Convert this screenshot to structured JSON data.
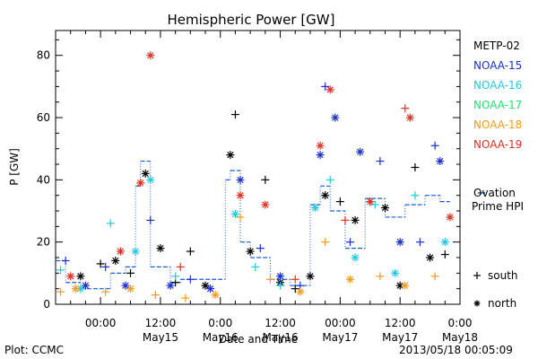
{
  "chart_data": {
    "type": "scatter",
    "title": "Hemispheric Power [GW]",
    "ylabel": "P [GW]",
    "xlabel": "Date and Time",
    "ylim": [
      0,
      88
    ],
    "yticks": [
      0,
      20,
      40,
      60,
      80
    ],
    "xlim": [
      "2013-05-14T15:00",
      "2013-05-18T00:00"
    ],
    "xticks": [
      {
        "time": "2013-05-15T00:00",
        "line1": "00:00",
        "line2": ""
      },
      {
        "time": "2013-05-15T12:00",
        "line1": "12:00",
        "line2": "May15"
      },
      {
        "time": "2013-05-16T00:00",
        "line1": "0:00",
        "line2": "May16"
      },
      {
        "time": "2013-05-16T12:00",
        "line1": "12:00",
        "line2": "May16"
      },
      {
        "time": "2013-05-17T00:00",
        "line1": "00:00",
        "line2": "May17"
      },
      {
        "time": "2013-05-17T12:00",
        "line1": "12:00",
        "line2": "May17"
      },
      {
        "time": "2013-05-18T00:00",
        "line1": "0:00",
        "line2": "May18"
      }
    ],
    "grid": false,
    "legend_position": "right",
    "marker_legend": {
      "plus": "south",
      "star": "north"
    },
    "series": [
      {
        "name": "METP-02",
        "color": "#000000",
        "points": [
          {
            "t": "2013-05-14T20:00",
            "v": 9,
            "m": "star"
          },
          {
            "t": "2013-05-15T00:00",
            "v": 13,
            "m": "plus"
          },
          {
            "t": "2013-05-15T03:00",
            "v": 14,
            "m": "star"
          },
          {
            "t": "2013-05-15T06:00",
            "v": 10,
            "m": "plus"
          },
          {
            "t": "2013-05-15T09:00",
            "v": 42,
            "m": "star"
          },
          {
            "t": "2013-05-15T12:00",
            "v": 18,
            "m": "star"
          },
          {
            "t": "2013-05-15T15:00",
            "v": 7,
            "m": "plus"
          },
          {
            "t": "2013-05-15T18:00",
            "v": 17,
            "m": "plus"
          },
          {
            "t": "2013-05-15T21:00",
            "v": 6,
            "m": "star"
          },
          {
            "t": "2013-05-16T02:00",
            "v": 48,
            "m": "star"
          },
          {
            "t": "2013-05-16T03:00",
            "v": 61,
            "m": "plus"
          },
          {
            "t": "2013-05-16T06:00",
            "v": 17,
            "m": "star"
          },
          {
            "t": "2013-05-16T09:00",
            "v": 40,
            "m": "plus"
          },
          {
            "t": "2013-05-16T12:00",
            "v": 7,
            "m": "star"
          },
          {
            "t": "2013-05-16T15:00",
            "v": 5,
            "m": "plus"
          },
          {
            "t": "2013-05-16T18:00",
            "v": 9,
            "m": "star"
          },
          {
            "t": "2013-05-16T21:00",
            "v": 35,
            "m": "star"
          },
          {
            "t": "2013-05-17T00:00",
            "v": 33,
            "m": "plus"
          },
          {
            "t": "2013-05-17T03:00",
            "v": 27,
            "m": "star"
          },
          {
            "t": "2013-05-17T06:00",
            "v": 33,
            "m": "plus"
          },
          {
            "t": "2013-05-17T09:00",
            "v": 31,
            "m": "star"
          },
          {
            "t": "2013-05-17T12:00",
            "v": 6,
            "m": "star"
          },
          {
            "t": "2013-05-17T15:00",
            "v": 44,
            "m": "plus"
          },
          {
            "t": "2013-05-17T18:00",
            "v": 15,
            "m": "star"
          },
          {
            "t": "2013-05-17T21:00",
            "v": 16,
            "m": "plus"
          }
        ]
      },
      {
        "name": "NOAA-15",
        "color": "#1a2fd0",
        "points": [
          {
            "t": "2013-05-14T17:00",
            "v": 14,
            "m": "plus"
          },
          {
            "t": "2013-05-14T21:00",
            "v": 6,
            "m": "star"
          },
          {
            "t": "2013-05-15T01:00",
            "v": 12,
            "m": "plus"
          },
          {
            "t": "2013-05-15T05:00",
            "v": 6,
            "m": "star"
          },
          {
            "t": "2013-05-15T10:00",
            "v": 27,
            "m": "plus"
          },
          {
            "t": "2013-05-15T14:00",
            "v": 6,
            "m": "star"
          },
          {
            "t": "2013-05-15T18:00",
            "v": 8,
            "m": "plus"
          },
          {
            "t": "2013-05-15T22:00",
            "v": 5,
            "m": "star"
          },
          {
            "t": "2013-05-16T04:00",
            "v": 40,
            "m": "star"
          },
          {
            "t": "2013-05-16T08:00",
            "v": 18,
            "m": "plus"
          },
          {
            "t": "2013-05-16T12:00",
            "v": 9,
            "m": "star"
          },
          {
            "t": "2013-05-16T16:00",
            "v": 6,
            "m": "plus"
          },
          {
            "t": "2013-05-16T20:00",
            "v": 48,
            "m": "star"
          },
          {
            "t": "2013-05-16T21:00",
            "v": 70,
            "m": "plus"
          },
          {
            "t": "2013-05-16T23:00",
            "v": 60,
            "m": "star"
          },
          {
            "t": "2013-05-17T02:00",
            "v": 20,
            "m": "plus"
          },
          {
            "t": "2013-05-17T04:00",
            "v": 49,
            "m": "star"
          },
          {
            "t": "2013-05-17T08:00",
            "v": 46,
            "m": "plus"
          },
          {
            "t": "2013-05-17T12:00",
            "v": 20,
            "m": "star"
          },
          {
            "t": "2013-05-17T16:00",
            "v": 20,
            "m": "plus"
          },
          {
            "t": "2013-05-17T19:00",
            "v": 51,
            "m": "plus"
          },
          {
            "t": "2013-05-17T20:00",
            "v": 46,
            "m": "star"
          }
        ]
      },
      {
        "name": "NOAA-16",
        "color": "#22c8e0",
        "points": [
          {
            "t": "2013-05-14T16:00",
            "v": 11,
            "m": "plus"
          },
          {
            "t": "2013-05-14T20:00",
            "v": 5,
            "m": "star"
          },
          {
            "t": "2013-05-15T02:00",
            "v": 26,
            "m": "plus"
          },
          {
            "t": "2013-05-15T07:00",
            "v": 17,
            "m": "star"
          },
          {
            "t": "2013-05-15T10:00",
            "v": 40,
            "m": "star"
          },
          {
            "t": "2013-05-15T15:00",
            "v": 9,
            "m": "plus"
          },
          {
            "t": "2013-05-16T03:00",
            "v": 29,
            "m": "star"
          },
          {
            "t": "2013-05-16T07:00",
            "v": 12,
            "m": "plus"
          },
          {
            "t": "2013-05-16T12:00",
            "v": 6,
            "m": "plus"
          },
          {
            "t": "2013-05-16T19:00",
            "v": 31,
            "m": "star"
          },
          {
            "t": "2013-05-16T22:00",
            "v": 40,
            "m": "plus"
          },
          {
            "t": "2013-05-17T03:00",
            "v": 15,
            "m": "star"
          },
          {
            "t": "2013-05-17T07:00",
            "v": 32,
            "m": "plus"
          },
          {
            "t": "2013-05-17T11:00",
            "v": 10,
            "m": "star"
          },
          {
            "t": "2013-05-17T15:00",
            "v": 35,
            "m": "plus"
          },
          {
            "t": "2013-05-17T21:00",
            "v": 20,
            "m": "star"
          }
        ]
      },
      {
        "name": "NOAA-17",
        "color": "#20e070",
        "points": []
      },
      {
        "name": "NOAA-18",
        "color": "#f39a20",
        "points": [
          {
            "t": "2013-05-14T16:00",
            "v": 4,
            "m": "plus"
          },
          {
            "t": "2013-05-14T19:00",
            "v": 5,
            "m": "star"
          },
          {
            "t": "2013-05-15T01:00",
            "v": 4,
            "m": "plus"
          },
          {
            "t": "2013-05-15T06:00",
            "v": 5,
            "m": "star"
          },
          {
            "t": "2013-05-15T11:00",
            "v": 3,
            "m": "plus"
          },
          {
            "t": "2013-05-15T17:00",
            "v": 2,
            "m": "plus"
          },
          {
            "t": "2013-05-15T23:00",
            "v": 3,
            "m": "star"
          },
          {
            "t": "2013-05-16T04:00",
            "v": 28,
            "m": "plus"
          },
          {
            "t": "2013-05-16T10:00",
            "v": 8,
            "m": "plus"
          },
          {
            "t": "2013-05-16T16:00",
            "v": 4,
            "m": "star"
          },
          {
            "t": "2013-05-16T21:00",
            "v": 20,
            "m": "plus"
          },
          {
            "t": "2013-05-17T02:00",
            "v": 8,
            "m": "star"
          },
          {
            "t": "2013-05-17T08:00",
            "v": 9,
            "m": "plus"
          },
          {
            "t": "2013-05-17T13:00",
            "v": 6,
            "m": "star"
          },
          {
            "t": "2013-05-17T19:00",
            "v": 9,
            "m": "plus"
          }
        ]
      },
      {
        "name": "NOAA-19",
        "color": "#e03020",
        "points": [
          {
            "t": "2013-05-14T18:00",
            "v": 9,
            "m": "star"
          },
          {
            "t": "2013-05-15T04:00",
            "v": 17,
            "m": "star"
          },
          {
            "t": "2013-05-15T08:00",
            "v": 39,
            "m": "star"
          },
          {
            "t": "2013-05-15T10:00",
            "v": 80,
            "m": "star"
          },
          {
            "t": "2013-05-15T16:00",
            "v": 12,
            "m": "plus"
          },
          {
            "t": "2013-05-16T04:00",
            "v": 35,
            "m": "star"
          },
          {
            "t": "2013-05-16T09:00",
            "v": 32,
            "m": "star"
          },
          {
            "t": "2013-05-16T15:00",
            "v": 8,
            "m": "plus"
          },
          {
            "t": "2013-05-16T20:00",
            "v": 51,
            "m": "star"
          },
          {
            "t": "2013-05-16T22:00",
            "v": 69,
            "m": "star"
          },
          {
            "t": "2013-05-17T01:00",
            "v": 27,
            "m": "plus"
          },
          {
            "t": "2013-05-17T06:00",
            "v": 33,
            "m": "star"
          },
          {
            "t": "2013-05-17T13:00",
            "v": 63,
            "m": "plus"
          },
          {
            "t": "2013-05-17T14:00",
            "v": 60,
            "m": "star"
          },
          {
            "t": "2013-05-17T22:00",
            "v": 28,
            "m": "star"
          }
        ]
      }
    ],
    "ovation": {
      "name_line1": "Ovation",
      "name_line2": "Prime HPI",
      "color": "#1a5fd0",
      "steps": [
        {
          "t": "2013-05-14T15:00",
          "v": 14
        },
        {
          "t": "2013-05-14T17:00",
          "v": 7
        },
        {
          "t": "2013-05-14T20:00",
          "v": 5
        },
        {
          "t": "2013-05-15T02:00",
          "v": 10
        },
        {
          "t": "2013-05-15T05:00",
          "v": 12
        },
        {
          "t": "2013-05-15T07:00",
          "v": 38
        },
        {
          "t": "2013-05-15T08:00",
          "v": 46
        },
        {
          "t": "2013-05-15T10:00",
          "v": 12
        },
        {
          "t": "2013-05-15T14:00",
          "v": 7
        },
        {
          "t": "2013-05-15T16:00",
          "v": 8
        },
        {
          "t": "2013-05-16T01:00",
          "v": 40
        },
        {
          "t": "2013-05-16T02:00",
          "v": 43
        },
        {
          "t": "2013-05-16T04:00",
          "v": 20
        },
        {
          "t": "2013-05-16T06:00",
          "v": 15
        },
        {
          "t": "2013-05-16T10:00",
          "v": 8
        },
        {
          "t": "2013-05-16T14:00",
          "v": 6
        },
        {
          "t": "2013-05-16T18:00",
          "v": 32
        },
        {
          "t": "2013-05-16T20:00",
          "v": 38
        },
        {
          "t": "2013-05-16T22:00",
          "v": 30
        },
        {
          "t": "2013-05-17T01:00",
          "v": 18
        },
        {
          "t": "2013-05-17T05:00",
          "v": 34
        },
        {
          "t": "2013-05-17T09:00",
          "v": 28
        },
        {
          "t": "2013-05-17T13:00",
          "v": 32
        },
        {
          "t": "2013-05-17T17:00",
          "v": 35
        },
        {
          "t": "2013-05-17T20:00",
          "v": 33
        },
        {
          "t": "2013-05-17T22:00",
          "v": 33
        }
      ]
    }
  },
  "footer": {
    "left": "Plot: CCMC",
    "right": "2013/05/18 00:05:09"
  }
}
